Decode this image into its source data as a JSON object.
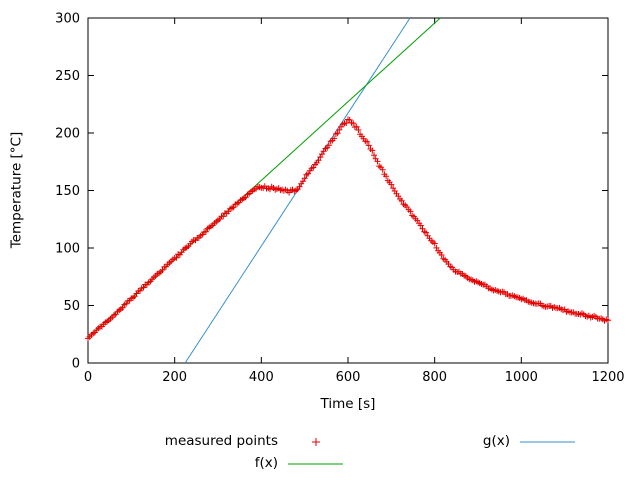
{
  "chart_data": {
    "type": "scatter",
    "title": "",
    "xlabel": "Time [s]",
    "ylabel": "Temperature [°C]",
    "xlim": [
      0,
      1200
    ],
    "ylim": [
      0,
      300
    ],
    "xticks": [
      0,
      200,
      400,
      600,
      800,
      1000,
      1200
    ],
    "yticks": [
      0,
      50,
      100,
      150,
      200,
      250,
      300
    ],
    "grid": false,
    "legend_position": "below-plot",
    "legend": {
      "measured_label": "measured points",
      "f_label": "f(x)",
      "g_label": "g(x)"
    },
    "colors": {
      "measured": "#e60000",
      "f": "#009e00",
      "g": "#3390cf",
      "axis": "#000000",
      "background": "#ffffff"
    },
    "series": {
      "measured": {
        "name": "measured points",
        "style": "points-plus",
        "sample_step_s": 4,
        "noise_amp_c": 1.0,
        "keypoints": [
          [
            0,
            22
          ],
          [
            20,
            28
          ],
          [
            50,
            38
          ],
          [
            100,
            56
          ],
          [
            150,
            74
          ],
          [
            200,
            91
          ],
          [
            250,
            108
          ],
          [
            300,
            124
          ],
          [
            350,
            141
          ],
          [
            385,
            151
          ],
          [
            392,
            153
          ],
          [
            400,
            152
          ],
          [
            408,
            154
          ],
          [
            416,
            151
          ],
          [
            424,
            153
          ],
          [
            432,
            150
          ],
          [
            440,
            152
          ],
          [
            448,
            150
          ],
          [
            456,
            151
          ],
          [
            464,
            149
          ],
          [
            472,
            150
          ],
          [
            480,
            150
          ],
          [
            488,
            154
          ],
          [
            500,
            161
          ],
          [
            515,
            168
          ],
          [
            530,
            176
          ],
          [
            545,
            184
          ],
          [
            560,
            192
          ],
          [
            575,
            200
          ],
          [
            588,
            207
          ],
          [
            600,
            211
          ],
          [
            607,
            210
          ],
          [
            614,
            207
          ],
          [
            621,
            204
          ],
          [
            628,
            199
          ],
          [
            635,
            196
          ],
          [
            642,
            193
          ],
          [
            648,
            189
          ],
          [
            654,
            186
          ],
          [
            662,
            180
          ],
          [
            672,
            172
          ],
          [
            682,
            166
          ],
          [
            692,
            159
          ],
          [
            702,
            153
          ],
          [
            712,
            147
          ],
          [
            722,
            142
          ],
          [
            732,
            137
          ],
          [
            742,
            132
          ],
          [
            752,
            127
          ],
          [
            762,
            122
          ],
          [
            772,
            117
          ],
          [
            782,
            112
          ],
          [
            792,
            107
          ],
          [
            800,
            103
          ],
          [
            807,
            99
          ],
          [
            814,
            95
          ],
          [
            821,
            91
          ],
          [
            828,
            87
          ],
          [
            836,
            84
          ],
          [
            846,
            81
          ],
          [
            858,
            78
          ],
          [
            872,
            75
          ],
          [
            886,
            72
          ],
          [
            900,
            70
          ],
          [
            918,
            67
          ],
          [
            936,
            64
          ],
          [
            954,
            62
          ],
          [
            972,
            59
          ],
          [
            990,
            57
          ],
          [
            1008,
            55
          ],
          [
            1026,
            53
          ],
          [
            1044,
            51
          ],
          [
            1062,
            49
          ],
          [
            1080,
            48
          ],
          [
            1098,
            46
          ],
          [
            1116,
            44
          ],
          [
            1134,
            43
          ],
          [
            1152,
            41
          ],
          [
            1170,
            40
          ],
          [
            1185,
            38
          ],
          [
            1200,
            37
          ]
        ]
      },
      "f": {
        "name": "f(x)",
        "style": "line",
        "slope": 0.342,
        "intercept": 22
      },
      "g": {
        "name": "g(x)",
        "style": "line",
        "slope": 0.578,
        "intercept": -129.5
      }
    }
  }
}
